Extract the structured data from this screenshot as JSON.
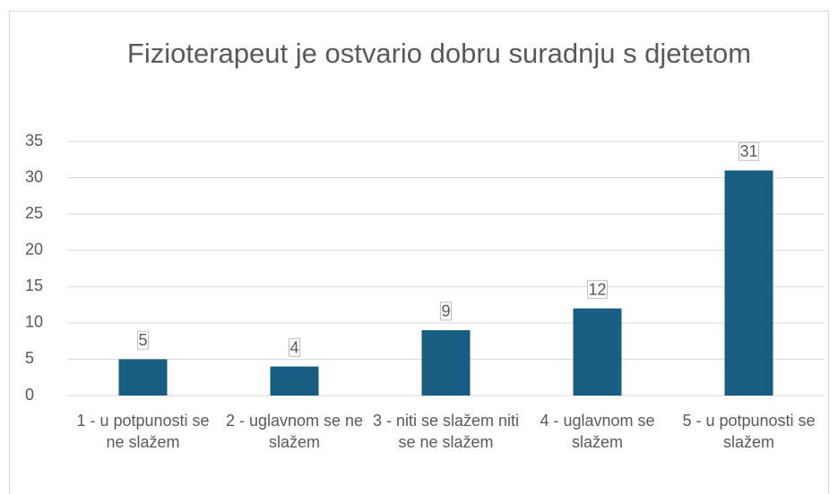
{
  "chart_data": {
    "type": "bar",
    "title": "Fizioterapeut je ostvario dobru suradnju s djetetom",
    "categories": [
      "1 - u potpunosti se ne slažem",
      "2 - uglavnom se ne slažem",
      "3 - niti se slažem niti se ne slažem",
      "4 - uglavnom se slažem",
      "5 - u potpunosti se slažem"
    ],
    "values": [
      5,
      4,
      9,
      12,
      31
    ],
    "color": "#175e82",
    "ylim": [
      0,
      35
    ],
    "yticks": [
      0,
      5,
      10,
      15,
      20,
      25,
      30,
      35
    ],
    "grid": true
  }
}
